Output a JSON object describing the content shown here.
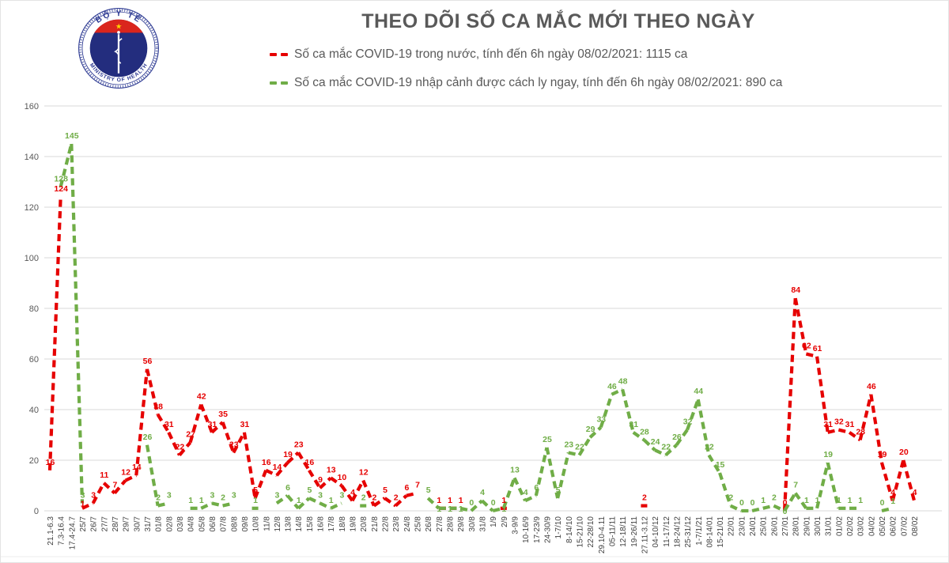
{
  "header": {
    "title": "THEO DÕI SỐ CA MẮC MỚI THEO NGÀY",
    "logo": {
      "top_text": "BỘ Y TẾ",
      "bottom_text": "MINISTRY OF HEALTH",
      "colors": {
        "ring_blue": "#2e3b93",
        "disc_navy": "#232d7e",
        "flag_red": "#da251d",
        "star_yellow": "#ffd400"
      }
    },
    "legend": [
      {
        "label": "Số ca mắc COVID-19 trong nước, tính đến 6h ngày 08/02/2021: 1115 ca",
        "color": "#e60000"
      },
      {
        "label": "Số ca mắc COVID-19 nhập cảnh được cách ly ngay, tính đến 6h ngày 08/02/2021: 890 ca",
        "color": "#70ad47"
      }
    ]
  },
  "chart_data": {
    "type": "line",
    "title": "THEO DÕI SỐ CA MẮC MỚI THEO NGÀY",
    "xlabel": "",
    "ylabel": "",
    "ylim": [
      0,
      160
    ],
    "ytick_step": 20,
    "grid": true,
    "line_style": "dashed",
    "legend_position": "top",
    "axis_text_color": "#595959",
    "gridline_color": "#d9d9d9",
    "categories": [
      "21.1-6.3",
      "7.3-16.4",
      "17.4-24.7",
      "25/7",
      "26/7",
      "27/7",
      "28/7",
      "29/7",
      "30/7",
      "31/7",
      "01/8",
      "02/8",
      "03/8",
      "04/8",
      "05/8",
      "06/8",
      "07/8",
      "08/8",
      "09/8",
      "10/8",
      "11/8",
      "12/8",
      "13/8",
      "14/8",
      "15/8",
      "16/8",
      "17/8",
      "18/8",
      "19/8",
      "20/8",
      "21/8",
      "22/8",
      "23/8",
      "24/8",
      "25/8",
      "26/8",
      "27/8",
      "28/8",
      "29/8",
      "30/8",
      "31/8",
      "1/9",
      "2/9",
      "3-9/9",
      "10-16/9",
      "17-23/9",
      "24-30/9",
      "1-7/10",
      "8-14/10",
      "15-21/10",
      "22-28/10",
      "29.10-4.11",
      "05-11/11",
      "12-18/11",
      "19-26/11",
      "27.11-3.12",
      "04-10/12",
      "11-17/12",
      "18-24/12",
      "25-31/12",
      "1-7/1/21",
      "08-14/01",
      "15-21/01",
      "22/01",
      "23/01",
      "24/01",
      "25/01",
      "26/01",
      "27/01",
      "28/01",
      "29/01",
      "30/01",
      "31/01",
      "01/02",
      "02/02",
      "03/02",
      "04/02",
      "05/02",
      "06/02",
      "07/02",
      "08/02"
    ],
    "series": [
      {
        "name": "Số ca mắc COVID-19 trong nước",
        "total": 1115,
        "color": "#e60000",
        "values": [
          16,
          124,
          null,
          1,
          3,
          11,
          7,
          12,
          14,
          56,
          38,
          31,
          22,
          27,
          42,
          31,
          35,
          23,
          31,
          5,
          16,
          14,
          19,
          23,
          16,
          9,
          13,
          10,
          4,
          12,
          2,
          5,
          2,
          6,
          7,
          null,
          1,
          1,
          1,
          null,
          null,
          null,
          1,
          null,
          null,
          null,
          null,
          null,
          null,
          null,
          null,
          null,
          null,
          null,
          null,
          2,
          null,
          null,
          null,
          null,
          null,
          null,
          null,
          null,
          null,
          null,
          null,
          null,
          0,
          84,
          62,
          61,
          31,
          32,
          31,
          28,
          46,
          19,
          4,
          20,
          4
        ]
      },
      {
        "name": "Số ca mắc COVID-19 nhập cảnh được cách ly ngay",
        "total": 890,
        "color": "#70ad47",
        "values": [
          null,
          128,
          145,
          3,
          null,
          null,
          null,
          null,
          null,
          26,
          2,
          3,
          null,
          1,
          1,
          3,
          2,
          3,
          null,
          1,
          null,
          3,
          6,
          1,
          5,
          3,
          1,
          3,
          null,
          2,
          null,
          null,
          null,
          null,
          null,
          5,
          1,
          1,
          1,
          0,
          4,
          0,
          1,
          13,
          4,
          6,
          25,
          5,
          23,
          22,
          29,
          33,
          46,
          48,
          31,
          28,
          24,
          22,
          26,
          32,
          44,
          22,
          15,
          2,
          0,
          0,
          1,
          2,
          0,
          7,
          1,
          1,
          19,
          1,
          1,
          1,
          null,
          0,
          1,
          null,
          null
        ]
      }
    ]
  }
}
